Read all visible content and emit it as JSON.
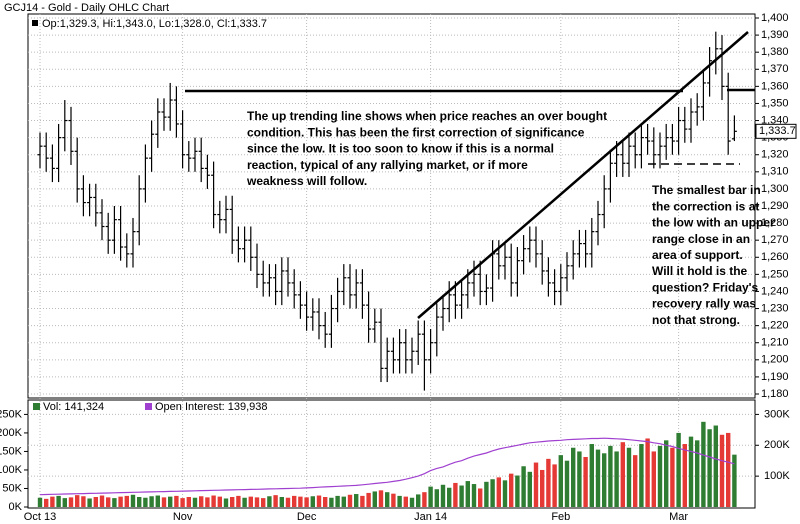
{
  "chart_data": {
    "type": "ohlc",
    "title": "GCJ14 - Gold - Daily OHLC Chart",
    "legend_text": "Op:1,329.3, Hi:1,343.0, Lo:1,328.0, Cl:1,333.7",
    "last_label": "1,333.7",
    "color": "#000000",
    "grid": true,
    "categories": [
      "Oct 13",
      null,
      null,
      null,
      null,
      null,
      null,
      null,
      null,
      null,
      null,
      null,
      null,
      null,
      null,
      null,
      null,
      null,
      null,
      null,
      null,
      null,
      null,
      "Nov",
      null,
      null,
      null,
      null,
      null,
      null,
      null,
      null,
      null,
      null,
      null,
      null,
      null,
      null,
      null,
      null,
      null,
      null,
      null,
      "Dec",
      null,
      null,
      null,
      null,
      null,
      null,
      null,
      null,
      null,
      null,
      null,
      null,
      null,
      null,
      null,
      null,
      null,
      null,
      null,
      "Jan 14",
      null,
      null,
      null,
      null,
      null,
      null,
      null,
      null,
      null,
      null,
      null,
      null,
      null,
      null,
      null,
      null,
      null,
      null,
      null,
      null,
      "Feb",
      null,
      null,
      null,
      null,
      null,
      null,
      null,
      null,
      null,
      null,
      null,
      null,
      null,
      null,
      null,
      null,
      null,
      null,
      "Mar",
      null,
      null,
      null,
      null,
      null,
      null,
      null,
      null,
      null
    ],
    "open": [
      1320,
      1325,
      1318,
      1312,
      1330,
      1340,
      1322,
      1300,
      1292,
      1295,
      1286,
      1278,
      1270,
      1282,
      1266,
      1262,
      1275,
      1300,
      1318,
      1332,
      1345,
      1342,
      1352,
      1338,
      1320,
      1318,
      1322,
      1312,
      1308,
      1285,
      1282,
      1288,
      1270,
      1265,
      1270,
      1260,
      1250,
      1245,
      1248,
      1240,
      1252,
      1245,
      1238,
      1232,
      1225,
      1228,
      1220,
      1215,
      1230,
      1240,
      1248,
      1238,
      1245,
      1232,
      1218,
      1222,
      1195,
      1205,
      1200,
      1210,
      1200,
      1205,
      1215,
      1200,
      1210,
      1225,
      1230,
      1238,
      1232,
      1238,
      1245,
      1250,
      1240,
      1242,
      1262,
      1255,
      1260,
      1245,
      1258,
      1265,
      1270,
      1262,
      1252,
      1245,
      1240,
      1248,
      1255,
      1262,
      1268,
      1262,
      1275,
      1285,
      1300,
      1315,
      1320,
      1315,
      1325,
      1320,
      1330,
      1328,
      1320,
      1325,
      1330,
      1328,
      1340,
      1335,
      1345,
      1348,
      1362,
      1375,
      1382,
      1360,
      1329.3
    ],
    "high": [
      1333,
      1333,
      1326,
      1338,
      1352,
      1348,
      1330,
      1308,
      1303,
      1303,
      1294,
      1286,
      1290,
      1290,
      1274,
      1283,
      1308,
      1326,
      1340,
      1353,
      1353,
      1362,
      1360,
      1346,
      1328,
      1330,
      1330,
      1320,
      1316,
      1293,
      1296,
      1296,
      1278,
      1278,
      1278,
      1268,
      1258,
      1256,
      1256,
      1260,
      1260,
      1253,
      1246,
      1240,
      1236,
      1236,
      1228,
      1238,
      1248,
      1256,
      1256,
      1253,
      1253,
      1240,
      1230,
      1230,
      1213,
      1213,
      1218,
      1218,
      1213,
      1223,
      1223,
      1218,
      1233,
      1238,
      1246,
      1246,
      1246,
      1253,
      1258,
      1258,
      1250,
      1270,
      1270,
      1268,
      1268,
      1266,
      1273,
      1278,
      1278,
      1270,
      1260,
      1253,
      1256,
      1263,
      1270,
      1276,
      1276,
      1283,
      1293,
      1308,
      1323,
      1328,
      1328,
      1333,
      1333,
      1338,
      1338,
      1336,
      1333,
      1338,
      1338,
      1348,
      1348,
      1353,
      1356,
      1370,
      1383,
      1392,
      1390,
      1368,
      1343.0
    ],
    "low": [
      1312,
      1310,
      1304,
      1304,
      1322,
      1314,
      1292,
      1284,
      1284,
      1278,
      1270,
      1262,
      1262,
      1258,
      1254,
      1254,
      1267,
      1292,
      1310,
      1324,
      1334,
      1334,
      1330,
      1312,
      1310,
      1310,
      1304,
      1300,
      1277,
      1274,
      1274,
      1262,
      1257,
      1257,
      1252,
      1242,
      1237,
      1237,
      1232,
      1232,
      1237,
      1230,
      1224,
      1217,
      1217,
      1212,
      1207,
      1207,
      1222,
      1232,
      1230,
      1230,
      1224,
      1210,
      1210,
      1187,
      1187,
      1192,
      1192,
      1192,
      1192,
      1197,
      1182,
      1192,
      1202,
      1217,
      1222,
      1224,
      1224,
      1230,
      1237,
      1232,
      1232,
      1234,
      1247,
      1247,
      1237,
      1237,
      1250,
      1257,
      1254,
      1244,
      1237,
      1232,
      1232,
      1240,
      1247,
      1254,
      1254,
      1254,
      1267,
      1277,
      1292,
      1307,
      1307,
      1307,
      1312,
      1312,
      1320,
      1312,
      1312,
      1317,
      1320,
      1320,
      1327,
      1327,
      1337,
      1340,
      1354,
      1367,
      1352,
      1320,
      1328.0
    ],
    "close": [
      1325,
      1318,
      1312,
      1330,
      1340,
      1322,
      1300,
      1292,
      1295,
      1286,
      1278,
      1270,
      1282,
      1266,
      1262,
      1275,
      1300,
      1318,
      1332,
      1345,
      1342,
      1352,
      1338,
      1320,
      1318,
      1322,
      1312,
      1308,
      1285,
      1282,
      1288,
      1270,
      1265,
      1270,
      1260,
      1250,
      1245,
      1248,
      1240,
      1252,
      1245,
      1238,
      1232,
      1225,
      1228,
      1220,
      1215,
      1230,
      1240,
      1248,
      1238,
      1245,
      1232,
      1218,
      1222,
      1195,
      1205,
      1200,
      1210,
      1200,
      1205,
      1215,
      1200,
      1210,
      1225,
      1230,
      1238,
      1232,
      1238,
      1245,
      1250,
      1240,
      1242,
      1262,
      1255,
      1260,
      1245,
      1258,
      1265,
      1270,
      1262,
      1252,
      1245,
      1240,
      1248,
      1255,
      1262,
      1268,
      1262,
      1275,
      1285,
      1300,
      1315,
      1320,
      1315,
      1325,
      1320,
      1330,
      1328,
      1320,
      1325,
      1330,
      1328,
      1340,
      1335,
      1345,
      1348,
      1362,
      1375,
      1382,
      1360,
      1328,
      1333.7
    ],
    "ylim": [
      1180,
      1400
    ],
    "yticks": [
      {
        "value": 1180,
        "label": "1,180"
      },
      {
        "value": 1190,
        "label": "1,190"
      },
      {
        "value": 1200,
        "label": "1,200"
      },
      {
        "value": 1210,
        "label": "1,210"
      },
      {
        "value": 1220,
        "label": "1,220"
      },
      {
        "value": 1230,
        "label": "1,230"
      },
      {
        "value": 1240,
        "label": "1,240"
      },
      {
        "value": 1250,
        "label": "1,250"
      },
      {
        "value": 1260,
        "label": "1,260"
      },
      {
        "value": 1270,
        "label": "1,270"
      },
      {
        "value": 1280,
        "label": "1,280"
      },
      {
        "value": 1290,
        "label": "1,290"
      },
      {
        "value": 1300,
        "label": "1,300"
      },
      {
        "value": 1310,
        "label": "1,310"
      },
      {
        "value": 1320,
        "label": "1,320"
      },
      {
        "value": 1330,
        "label": "1,330"
      },
      {
        "value": 1340,
        "label": "1,340"
      },
      {
        "value": 1350,
        "label": "1,350"
      },
      {
        "value": 1360,
        "label": "1,360"
      },
      {
        "value": 1370,
        "label": "1,370"
      },
      {
        "value": 1380,
        "label": "1,380"
      },
      {
        "value": 1390,
        "label": "1,390"
      },
      {
        "value": 1400,
        "label": "1,400"
      }
    ],
    "annotations": [
      {
        "lines": [
          "The up trending line shows when price reaches an over bought",
          "condition.  This has been the first correction of significance",
          "since the low.  It is too soon to know if this is a normal",
          "reaction, typical of any rallying market, or if more",
          "weakness will follow."
        ]
      },
      {
        "lines": [
          "The smallest bar in",
          "the correction is at",
          "the low with an upper",
          "range close in an",
          "area of support.",
          "Will it hold is the",
          "question?  Friday's",
          "recovery rally was",
          "not that strong."
        ]
      }
    ],
    "volume_panel": {
      "type": "bar",
      "up_color": "#2e7d32",
      "down_color": "#e53935",
      "ylim": [
        0,
        270000
      ],
      "yticks": [
        {
          "value": 0,
          "label": "0K"
        },
        {
          "value": 50000,
          "label": "50K"
        },
        {
          "value": 100000,
          "label": "100K"
        },
        {
          "value": 150000,
          "label": "150K"
        },
        {
          "value": 200000,
          "label": "200K"
        },
        {
          "value": 250000,
          "label": "250K"
        }
      ],
      "y2lim": [
        0,
        324000
      ],
      "y2ticks": [
        {
          "value": 100000,
          "label": "100K"
        },
        {
          "value": 200000,
          "label": "200K"
        },
        {
          "value": 300000,
          "label": "300K"
        }
      ],
      "series": [
        {
          "name": "Vol: 141,324",
          "color": "#2e7d32",
          "values": [
            25000,
            22000,
            28000,
            30000,
            24000,
            26000,
            32000,
            29000,
            23000,
            27000,
            31000,
            26000,
            24000,
            28000,
            30000,
            33000,
            27000,
            25000,
            29000,
            31000,
            26000,
            28000,
            30000,
            24000,
            27000,
            25000,
            29000,
            26000,
            31000,
            28000,
            23000,
            27000,
            30000,
            25000,
            28000,
            26000,
            24000,
            29000,
            32000,
            27000,
            25000,
            30000,
            28000,
            26000,
            29000,
            31000,
            27000,
            25000,
            30000,
            28000,
            33000,
            35000,
            30000,
            38000,
            42000,
            45000,
            40000,
            36000,
            30000,
            28000,
            25000,
            34000,
            40000,
            55000,
            48000,
            60000,
            52000,
            65000,
            58000,
            70000,
            62000,
            50000,
            68000,
            75000,
            80000,
            72000,
            90000,
            85000,
            110000,
            95000,
            120000,
            100000,
            130000,
            115000,
            140000,
            125000,
            160000,
            150000,
            135000,
            170000,
            155000,
            145000,
            165000,
            150000,
            175000,
            160000,
            140000,
            170000,
            185000,
            150000,
            165000,
            180000,
            160000,
            200000,
            170000,
            190000,
            180000,
            230000,
            210000,
            220000,
            195000,
            200000,
            141324
          ]
        },
        {
          "name": "Open Interest: 139,938",
          "color": "#a040d0",
          "axis": "y2",
          "values": [
            40000,
            40500,
            41000,
            41500,
            42000,
            42500,
            43000,
            43500,
            44000,
            44500,
            45000,
            45500,
            46000,
            46500,
            47000,
            47500,
            48000,
            48500,
            49000,
            49500,
            50000,
            50500,
            51000,
            51500,
            52000,
            52500,
            53000,
            53500,
            54000,
            54500,
            55000,
            55500,
            56000,
            56500,
            57000,
            57500,
            58000,
            58500,
            59000,
            59500,
            60000,
            60500,
            61000,
            62000,
            63000,
            64000,
            65000,
            66000,
            67000,
            68000,
            69000,
            70000,
            72000,
            74000,
            76000,
            78000,
            80000,
            83000,
            86000,
            90000,
            95000,
            100000,
            108000,
            118000,
            125000,
            130000,
            138000,
            145000,
            150000,
            158000,
            165000,
            170000,
            175000,
            182000,
            188000,
            192000,
            196000,
            200000,
            204000,
            208000,
            210000,
            212000,
            214000,
            215000,
            216000,
            218000,
            219000,
            220000,
            221000,
            222000,
            222000,
            223000,
            222000,
            221000,
            220000,
            218000,
            216000,
            214000,
            212000,
            208000,
            205000,
            200000,
            196000,
            190000,
            185000,
            180000,
            175000,
            168000,
            162000,
            156000,
            150000,
            145000,
            139938
          ]
        }
      ]
    }
  }
}
